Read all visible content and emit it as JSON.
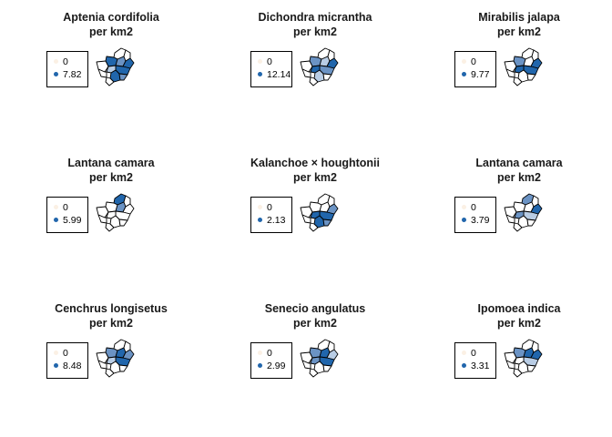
{
  "colors": {
    "zero": "#fbf0e4",
    "high": "#2166ac",
    "mid": "#6b93c4",
    "low": "#b9cde5",
    "none": "#ffffff"
  },
  "chart_data": [
    {
      "type": "map",
      "title": "Aptenia cordifolia",
      "subtitle": "per km2",
      "legend": [
        "0",
        "7.82"
      ],
      "max": 7.82,
      "fills": [
        "none",
        "high",
        "mid",
        "none",
        "high",
        "none",
        "high",
        "low",
        "high",
        "none",
        "mid",
        "none"
      ]
    },
    {
      "type": "map",
      "title": "Dichondra micrantha",
      "subtitle": "per km2",
      "legend": [
        "0",
        "12.14"
      ],
      "max": 12.14,
      "fills": [
        "none",
        "mid",
        "low",
        "none",
        "high",
        "none",
        "mid",
        "high",
        "low",
        "none",
        "none",
        "none"
      ]
    },
    {
      "type": "map",
      "title": "Mirabilis jalapa",
      "subtitle": "per km2",
      "legend": [
        "0",
        "9.77"
      ],
      "max": 9.77,
      "fills": [
        "none",
        "mid",
        "none",
        "none",
        "high",
        "none",
        "high",
        "high",
        "none",
        "none",
        "none",
        "none"
      ]
    },
    {
      "type": "map",
      "title": "Lantana camara",
      "subtitle": "per km2",
      "legend": [
        "0",
        "5.99"
      ],
      "max": 5.99,
      "fills": [
        "high",
        "none",
        "mid",
        "none",
        "none",
        "none",
        "none",
        "none",
        "none",
        "none",
        "none",
        "none"
      ]
    },
    {
      "type": "map",
      "title": "Kalanchoe × houghtonii",
      "subtitle": "per km2",
      "legend": [
        "0",
        "2.13"
      ],
      "max": 2.13,
      "fills": [
        "none",
        "none",
        "none",
        "none",
        "mid",
        "none",
        "high",
        "high",
        "high",
        "none",
        "mid",
        "none"
      ]
    },
    {
      "type": "map",
      "title": "Lantana camara",
      "subtitle": "per km2",
      "legend": [
        "0",
        "3.79"
      ],
      "max": 3.79,
      "fills": [
        "mid",
        "none",
        "none",
        "none",
        "high",
        "none",
        "low",
        "mid",
        "none",
        "none",
        "none",
        "none"
      ]
    },
    {
      "type": "map",
      "title": "Cenchrus longisetus",
      "subtitle": "per km2",
      "legend": [
        "0",
        "8.48"
      ],
      "max": 8.48,
      "fills": [
        "none",
        "mid",
        "high",
        "none",
        "mid",
        "none",
        "high",
        "low",
        "none",
        "none",
        "none",
        "none"
      ]
    },
    {
      "type": "map",
      "title": "Senecio angulatus",
      "subtitle": "per km2",
      "legend": [
        "0",
        "2.99"
      ],
      "max": 2.99,
      "fills": [
        "none",
        "mid",
        "high",
        "none",
        "low",
        "none",
        "high",
        "mid",
        "none",
        "none",
        "none",
        "none"
      ]
    },
    {
      "type": "map",
      "title": "Ipomoea indica",
      "subtitle": "per km2",
      "legend": [
        "0",
        "3.31"
      ],
      "max": 3.31,
      "fills": [
        "none",
        "mid",
        "high",
        "none",
        "high",
        "none",
        "low",
        "none",
        "none",
        "none",
        "none",
        "none"
      ]
    }
  ]
}
